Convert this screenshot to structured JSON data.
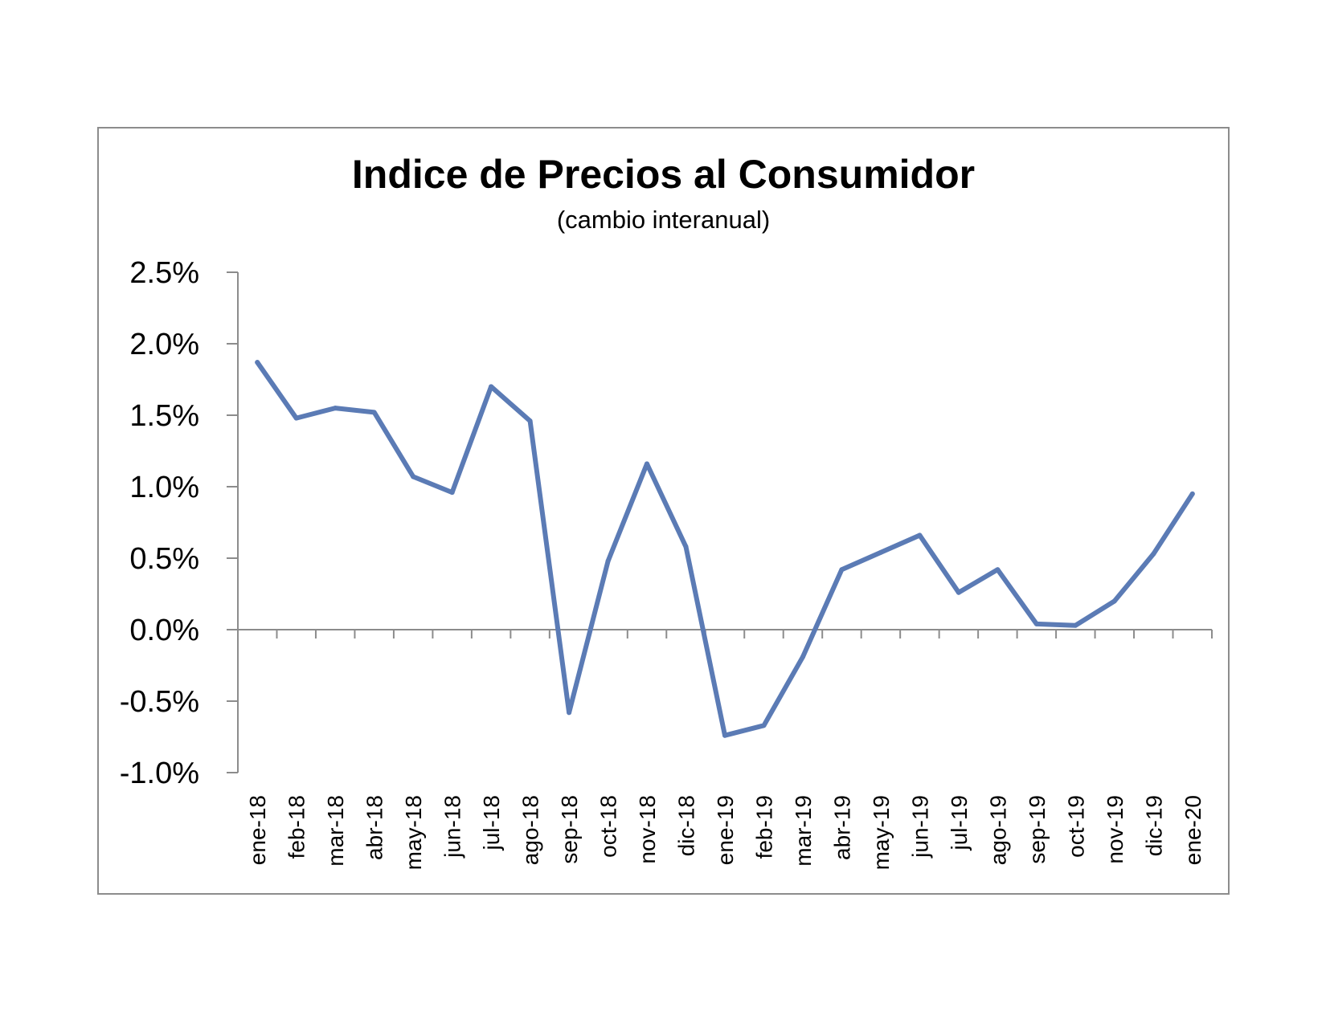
{
  "chart_data": {
    "type": "line",
    "title": "Indice de Precios al Consumidor",
    "subtitle": "(cambio interanual)",
    "xlabel": "",
    "ylabel": "",
    "categories": [
      "ene-18",
      "feb-18",
      "mar-18",
      "abr-18",
      "may-18",
      "jun-18",
      "jul-18",
      "ago-18",
      "sep-18",
      "oct-18",
      "nov-18",
      "dic-18",
      "ene-19",
      "feb-19",
      "mar-19",
      "abr-19",
      "may-19",
      "jun-19",
      "jul-19",
      "ago-19",
      "sep-19",
      "oct-19",
      "nov-19",
      "dic-19",
      "ene-20"
    ],
    "series": [
      {
        "values": [
          1.87,
          1.48,
          1.55,
          1.52,
          1.07,
          0.96,
          1.7,
          1.46,
          -0.58,
          0.48,
          1.16,
          0.58,
          -0.74,
          -0.67,
          -0.19,
          0.42,
          0.54,
          0.66,
          0.26,
          0.42,
          0.04,
          0.03,
          0.2,
          0.53,
          0.95
        ],
        "color": "#5b7bb5"
      }
    ],
    "ylim": [
      -1.0,
      2.5
    ],
    "yticks": [
      "-1.0%",
      "-0.5%",
      "0.0%",
      "0.5%",
      "1.0%",
      "1.5%",
      "2.0%",
      "2.5%"
    ],
    "ytick_values": [
      -1.0,
      -0.5,
      0.0,
      0.5,
      1.0,
      1.5,
      2.0,
      2.5
    ],
    "grid": false,
    "legend": "none"
  }
}
